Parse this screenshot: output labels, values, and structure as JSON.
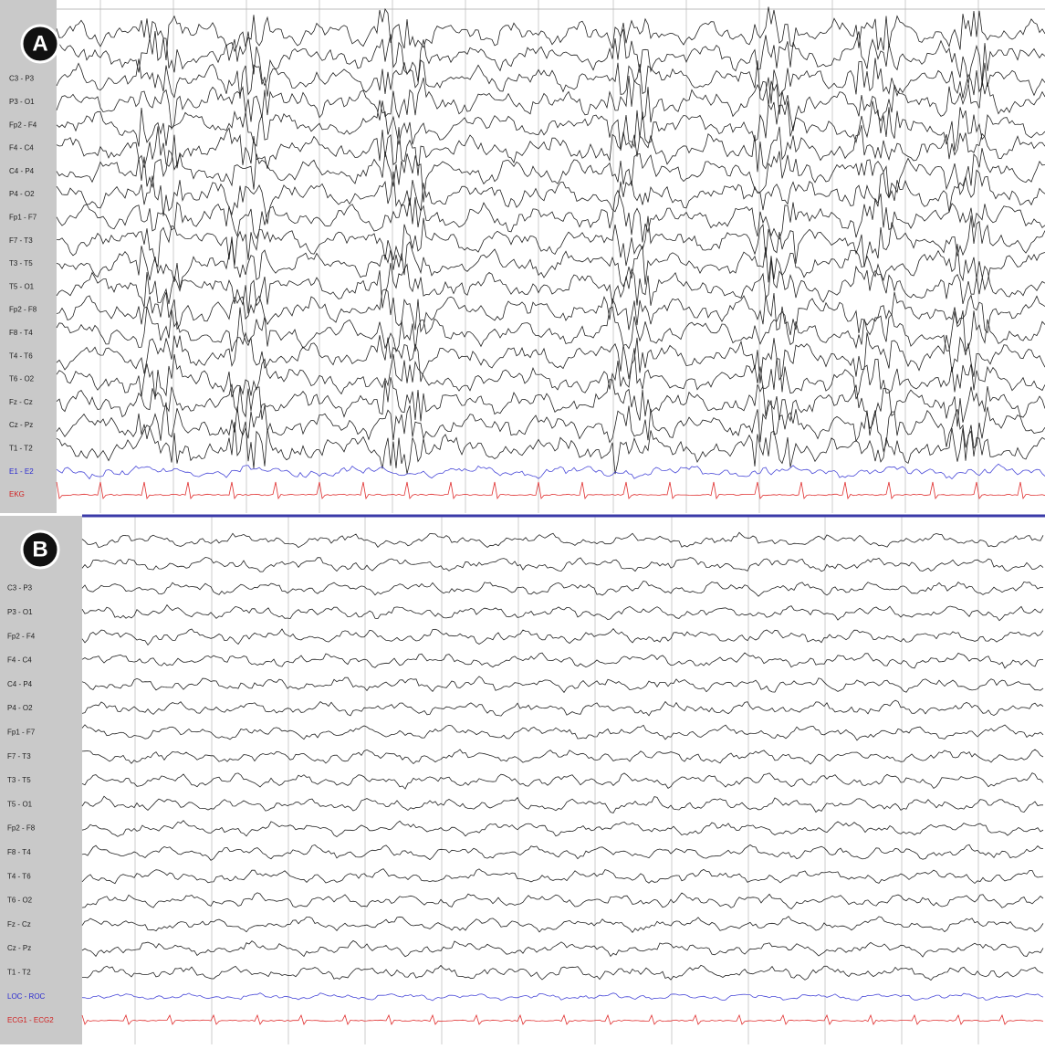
{
  "panels": [
    {
      "badge": "A",
      "channels": [
        "C3 - P3",
        "P3 - O1",
        "Fp2 - F4",
        "F4 - C4",
        "C4 - P4",
        "P4 - O2",
        "Fp1 - F7",
        "F7 - T3",
        "T3 - T5",
        "T5 - O1",
        "Fp2 - F8",
        "F8 - T4",
        "T4 - T6",
        "T6 - O2",
        "Fz - Cz",
        "Cz - Pz",
        "T1 - T2",
        "E1 - E2",
        "EKG"
      ]
    },
    {
      "badge": "B",
      "channels": [
        "C3 - P3",
        "P3 - O1",
        "Fp2 - F4",
        "F4 - C4",
        "C4 - P4",
        "P4 - O2",
        "Fp1 - F7",
        "F7 - T3",
        "T3 - T5",
        "T5 - O1",
        "Fp2 - F8",
        "F8 - T4",
        "T4 - T6",
        "T6 - O2",
        "Fz - Cz",
        "Cz - Pz",
        "T1 - T2",
        "LOC - ROC",
        "ECG1 - ECG2"
      ]
    }
  ]
}
